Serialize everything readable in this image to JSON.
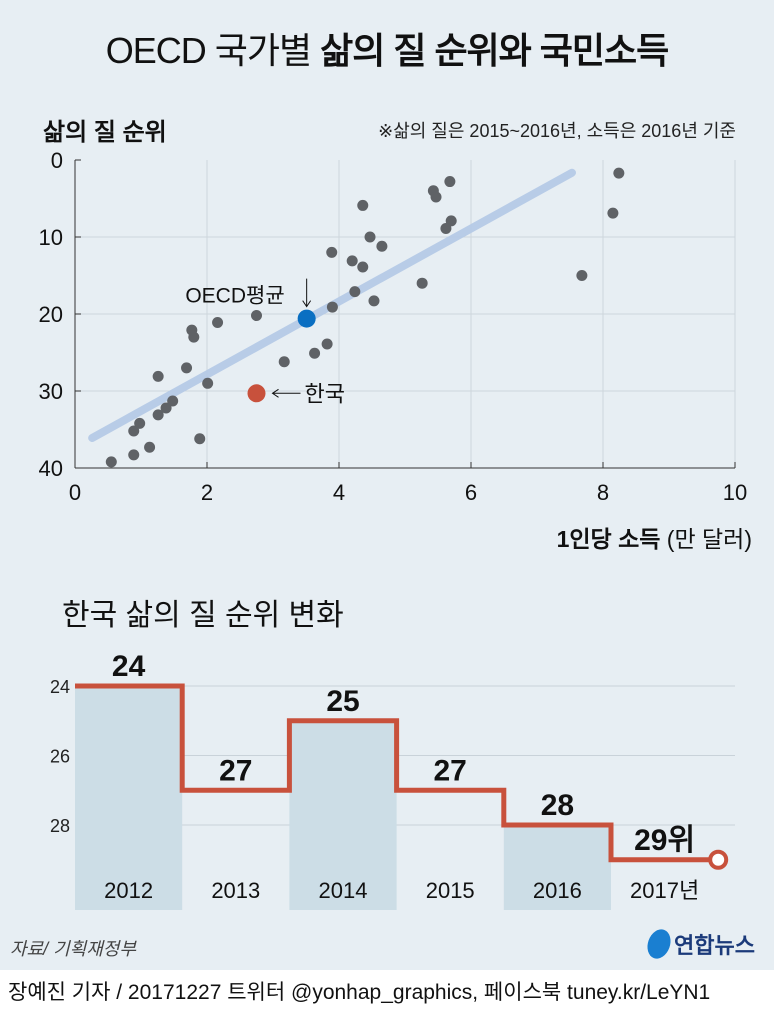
{
  "title": {
    "normal": "OECD 국가별 ",
    "bold": "삶의 질 순위와 국민소득"
  },
  "note": "※삶의 질은 2015~2016년, 소득은 2016년 기준",
  "x_label_bold": "1인당 소득",
  "x_label_unit": " (만 달러)",
  "subtitle": "한국 삶의 질 순위 변화",
  "source": "자료/ 기획재정부",
  "logo": "연합뉴스",
  "footer": "장예진 기자 / 20171227 트위터 @yonhap_graphics, 페이스북 tuney.kr/LeYN1",
  "chart_data": [
    {
      "type": "scatter",
      "ylabel": "삶의 질 순위",
      "xlim": [
        0,
        10
      ],
      "ylim": [
        0,
        40
      ],
      "y_reversed": true,
      "x_ticks": [
        0,
        2,
        4,
        6,
        8,
        10
      ],
      "y_ticks": [
        0,
        10,
        20,
        30,
        40
      ],
      "grid": true,
      "points": [
        [
          0.55,
          39.2
        ],
        [
          0.89,
          38.3
        ],
        [
          1.13,
          37.3
        ],
        [
          0.89,
          35.2
        ],
        [
          0.98,
          34.2
        ],
        [
          1.26,
          33.1
        ],
        [
          1.38,
          32.2
        ],
        [
          1.48,
          31.3
        ],
        [
          1.26,
          28.1
        ],
        [
          1.69,
          27.0
        ],
        [
          1.8,
          23.0
        ],
        [
          1.77,
          22.1
        ],
        [
          1.89,
          36.2
        ],
        [
          2.01,
          29.0
        ],
        [
          2.16,
          21.1
        ],
        [
          2.75,
          20.2
        ],
        [
          3.17,
          26.2
        ],
        [
          3.63,
          25.1
        ],
        [
          3.82,
          23.9
        ],
        [
          3.9,
          19.1
        ],
        [
          4.24,
          17.1
        ],
        [
          4.53,
          18.3
        ],
        [
          3.89,
          12.0
        ],
        [
          4.2,
          13.1
        ],
        [
          4.36,
          13.9
        ],
        [
          4.36,
          5.9
        ],
        [
          4.47,
          10.0
        ],
        [
          4.65,
          11.2
        ],
        [
          5.26,
          16.0
        ],
        [
          5.43,
          4.0
        ],
        [
          5.47,
          4.8
        ],
        [
          5.68,
          2.8
        ],
        [
          5.62,
          8.9
        ],
        [
          5.7,
          7.9
        ],
        [
          7.68,
          15.0
        ],
        [
          8.15,
          6.9
        ],
        [
          8.24,
          1.7
        ]
      ],
      "highlights": [
        {
          "label": "OECD평균",
          "x": 3.51,
          "y": 20.6,
          "color": "#0a6fc2"
        },
        {
          "label": "한국",
          "x": 2.75,
          "y": 30.3,
          "color": "#c8513c"
        }
      ],
      "trend": [
        [
          0.26,
          36.1
        ],
        [
          7.53,
          1.65
        ]
      ],
      "trend_color": "#b4c9e6",
      "point_color": "#5f6266"
    },
    {
      "type": "step-line",
      "categories": [
        "2012",
        "2013",
        "2014",
        "2015",
        "2016",
        "2017년"
      ],
      "values": [
        24,
        27,
        25,
        27,
        28,
        29
      ],
      "data_labels": [
        "24",
        "27",
        "25",
        "27",
        "28",
        "29위"
      ],
      "y_ticks": [
        24,
        26,
        28
      ],
      "y_reversed": true,
      "line_color": "#c8513c",
      "shaded_color": "#ccdde6"
    }
  ]
}
